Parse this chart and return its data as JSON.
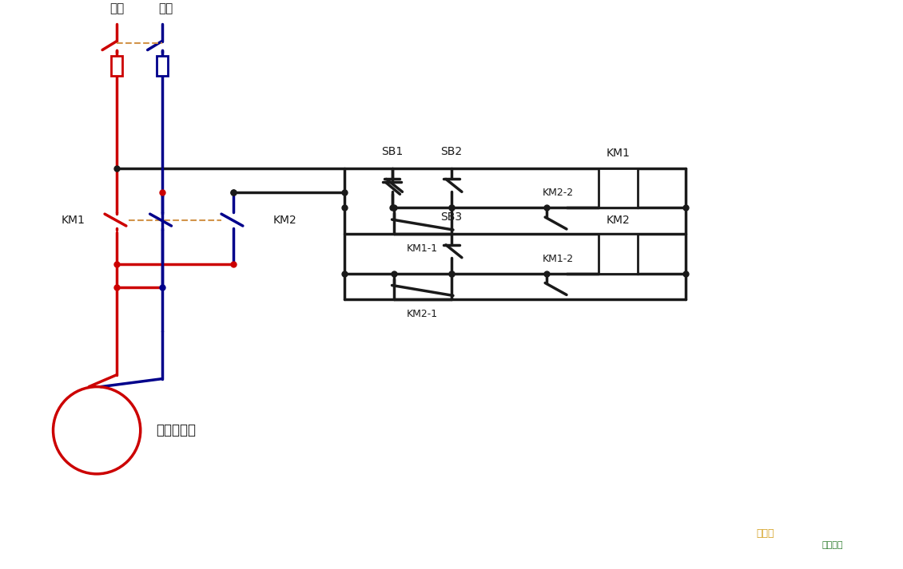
{
  "bg_color": "#ffffff",
  "red": "#cc0000",
  "blue": "#00008b",
  "black": "#1a1a1a",
  "orange": "#d2944a",
  "label_zhengji": "正极",
  "label_fuji": "负极",
  "label_motor": "直流电动机",
  "label_KM1": "KM1",
  "label_KM2": "KM2",
  "label_SB1": "SB1",
  "label_SB2": "SB2",
  "label_SB3": "SB3",
  "label_KM11": "KM1-1",
  "label_KM12": "KM1-2",
  "label_KM21": "KM2-1",
  "label_KM22": "KM2-2",
  "label_KM1coil": "KM1",
  "label_KM2coil": "KM2",
  "watermark1": "接线图",
  "watermark2": "中国电源"
}
